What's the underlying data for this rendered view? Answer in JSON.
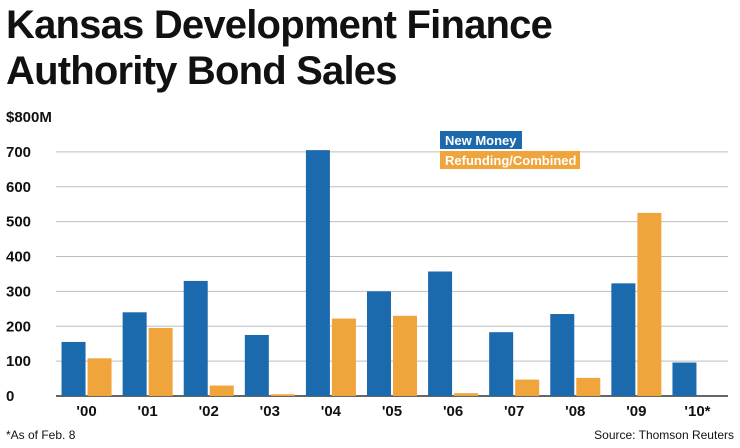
{
  "colors": {
    "new_money": "#1a6aad",
    "refunding": "#efa43c",
    "grid": "#bdbdbd",
    "axis": "#333333"
  },
  "title_lines": [
    "Kansas Development Finance",
    "Authority Bond Sales"
  ],
  "footnote": "*As of Feb. 8",
  "source": "Source: Thomson Reuters",
  "chart_data": {
    "type": "bar",
    "title": "Kansas Development Finance Authority Bond Sales",
    "xlabel": "",
    "ylabel": "",
    "ylim": [
      0,
      800
    ],
    "grid": true,
    "y_ticks": [
      {
        "value": 0,
        "label": "0"
      },
      {
        "value": 100,
        "label": "100"
      },
      {
        "value": 200,
        "label": "200"
      },
      {
        "value": 300,
        "label": "300"
      },
      {
        "value": 400,
        "label": "400"
      },
      {
        "value": 500,
        "label": "500"
      },
      {
        "value": 600,
        "label": "600"
      },
      {
        "value": 700,
        "label": "700"
      },
      {
        "value": 800,
        "label": "$800M"
      }
    ],
    "categories": [
      "'00",
      "'01",
      "'02",
      "'03",
      "'04",
      "'05",
      "'06",
      "'07",
      "'08",
      "'09",
      "'10*"
    ],
    "legend_position": "top-center",
    "series": [
      {
        "name": "New Money",
        "values": [
          155,
          240,
          330,
          175,
          705,
          300,
          357,
          183,
          235,
          323,
          96
        ]
      },
      {
        "name": "Refunding/Combined",
        "values": [
          108,
          195,
          30,
          5,
          222,
          230,
          8,
          47,
          52,
          525,
          0
        ]
      }
    ]
  }
}
